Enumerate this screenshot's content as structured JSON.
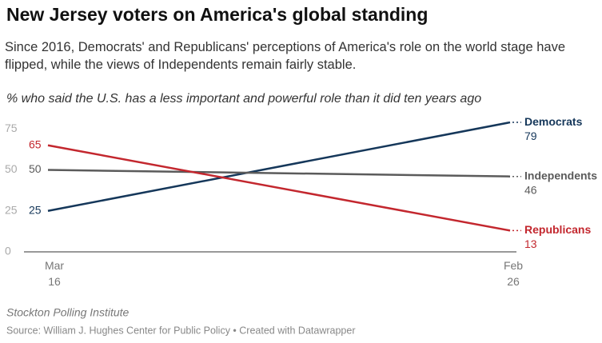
{
  "chart_data": {
    "type": "line",
    "title": "New Jersey voters on America's global standing",
    "subtitle": "Since 2016, Democrats' and Republicans' perceptions of America's role on the world stage have flipped, while the views of Independents remain fairly stable.",
    "description": "% who said the U.S. has a less important and powerful role than it did ten years ago",
    "source": "Stockton Polling Institute",
    "notes": "Source: William J. Hughes Center for Public Policy • Created with Datawrapper",
    "categories": [
      "Mar 16",
      "Feb 26"
    ],
    "series": [
      {
        "name": "Democrats",
        "color": "#15375a",
        "values": [
          25,
          79
        ]
      },
      {
        "name": "Independents",
        "color": "#5b5b5b",
        "values": [
          50,
          46
        ]
      },
      {
        "name": "Republicans",
        "color": "#c3272e",
        "values": [
          65,
          13
        ]
      }
    ],
    "ylim": [
      0,
      80
    ],
    "yticks": [
      0,
      25,
      50,
      75
    ],
    "grid": false
  }
}
